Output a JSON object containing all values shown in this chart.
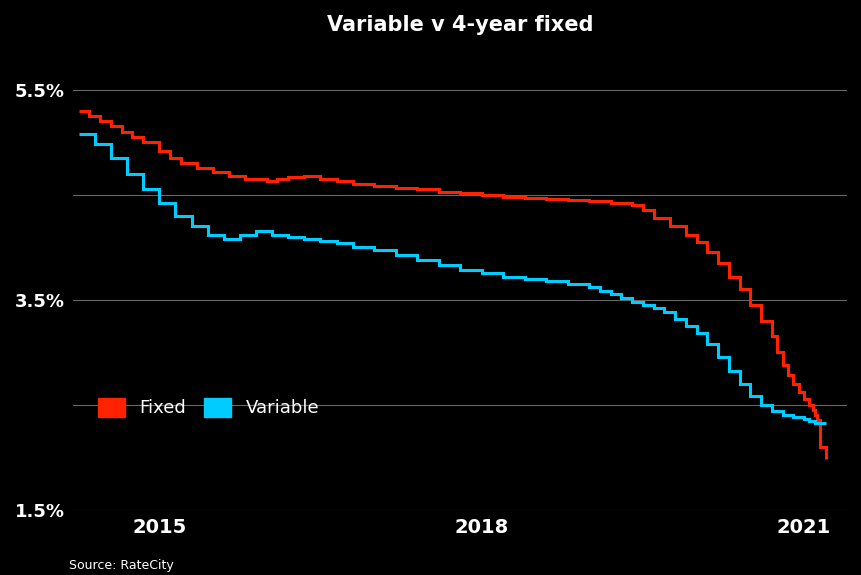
{
  "title": "Variable v 4-year fixed",
  "background_color": "#000000",
  "text_color": "#ffffff",
  "grid_color": "#666666",
  "fixed_color": "#ff2200",
  "variable_color": "#00ccff",
  "ylim": [
    1.5,
    5.9
  ],
  "xlim": [
    2014.2,
    2021.4
  ],
  "yticks": [
    1.5,
    2.5,
    3.5,
    4.5,
    5.5
  ],
  "ytick_labels": [
    "1.5%",
    "",
    "3.5%",
    "",
    "5.5%"
  ],
  "xticks": [
    2015,
    2018,
    2021
  ],
  "source_text": "Source: RateCity",
  "legend_labels": [
    "Fixed",
    "Variable"
  ],
  "fixed_x": [
    2014.25,
    2014.35,
    2014.45,
    2014.55,
    2014.65,
    2014.75,
    2014.85,
    2015.0,
    2015.1,
    2015.2,
    2015.35,
    2015.5,
    2015.65,
    2015.8,
    2016.0,
    2016.1,
    2016.2,
    2016.35,
    2016.5,
    2016.65,
    2016.8,
    2017.0,
    2017.2,
    2017.4,
    2017.6,
    2017.8,
    2018.0,
    2018.2,
    2018.4,
    2018.6,
    2018.8,
    2019.0,
    2019.2,
    2019.4,
    2019.5,
    2019.6,
    2019.75,
    2019.9,
    2020.0,
    2020.1,
    2020.2,
    2020.3,
    2020.4,
    2020.5,
    2020.6,
    2020.7,
    2020.75,
    2020.8,
    2020.85,
    2020.9,
    2020.95,
    2021.0,
    2021.05,
    2021.08,
    2021.1,
    2021.12,
    2021.15,
    2021.2
  ],
  "fixed_y": [
    5.3,
    5.25,
    5.2,
    5.15,
    5.1,
    5.05,
    5.0,
    4.92,
    4.85,
    4.8,
    4.75,
    4.72,
    4.68,
    4.65,
    4.63,
    4.65,
    4.67,
    4.68,
    4.65,
    4.63,
    4.6,
    4.58,
    4.56,
    4.55,
    4.53,
    4.52,
    4.5,
    4.48,
    4.47,
    4.46,
    4.45,
    4.44,
    4.42,
    4.4,
    4.35,
    4.28,
    4.2,
    4.12,
    4.05,
    3.95,
    3.85,
    3.72,
    3.6,
    3.45,
    3.3,
    3.15,
    3.0,
    2.88,
    2.78,
    2.7,
    2.62,
    2.55,
    2.5,
    2.45,
    2.4,
    2.35,
    2.1,
    1.98
  ],
  "variable_x": [
    2014.25,
    2014.4,
    2014.55,
    2014.7,
    2014.85,
    2015.0,
    2015.15,
    2015.3,
    2015.45,
    2015.6,
    2015.75,
    2015.9,
    2016.05,
    2016.2,
    2016.35,
    2016.5,
    2016.65,
    2016.8,
    2017.0,
    2017.2,
    2017.4,
    2017.6,
    2017.8,
    2018.0,
    2018.2,
    2018.4,
    2018.6,
    2018.8,
    2019.0,
    2019.1,
    2019.2,
    2019.3,
    2019.4,
    2019.5,
    2019.6,
    2019.7,
    2019.8,
    2019.9,
    2020.0,
    2020.1,
    2020.2,
    2020.3,
    2020.4,
    2020.5,
    2020.6,
    2020.7,
    2020.8,
    2020.9,
    2021.0,
    2021.05,
    2021.1,
    2021.15,
    2021.2
  ],
  "variable_y": [
    5.08,
    4.98,
    4.85,
    4.7,
    4.55,
    4.42,
    4.3,
    4.2,
    4.12,
    4.08,
    4.12,
    4.15,
    4.12,
    4.1,
    4.08,
    4.06,
    4.04,
    4.0,
    3.97,
    3.93,
    3.88,
    3.83,
    3.78,
    3.75,
    3.72,
    3.7,
    3.68,
    3.65,
    3.62,
    3.58,
    3.55,
    3.52,
    3.48,
    3.45,
    3.42,
    3.38,
    3.32,
    3.25,
    3.18,
    3.08,
    2.95,
    2.82,
    2.7,
    2.58,
    2.5,
    2.44,
    2.4,
    2.38,
    2.36,
    2.34,
    2.33,
    2.33,
    2.33
  ]
}
